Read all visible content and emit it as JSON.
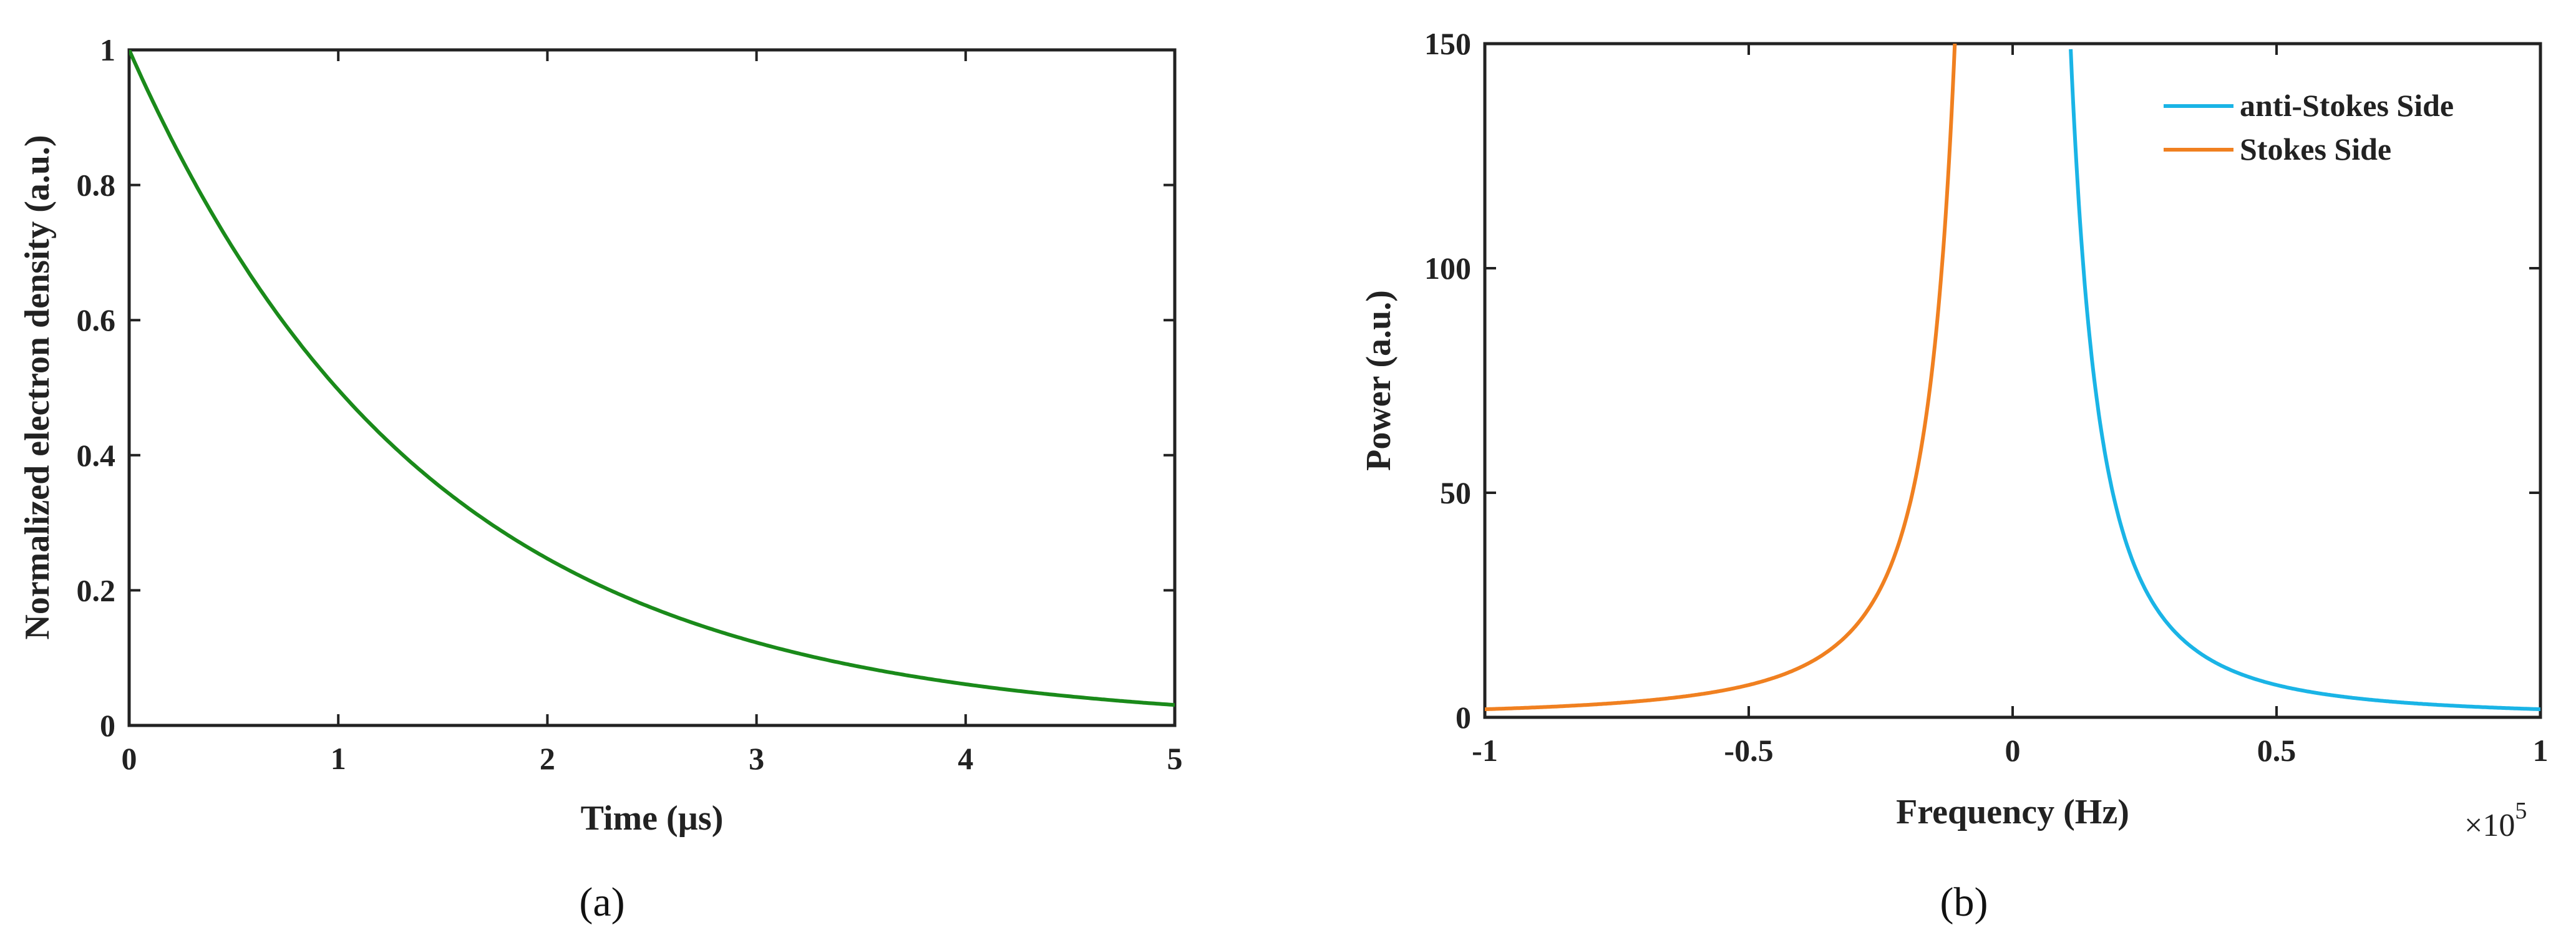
{
  "chart_data": [
    {
      "type": "line",
      "panel_label": "(a)",
      "xlabel": "Time (µs)",
      "ylabel": "Normalized electron density (a.u.)",
      "xlim": [
        0,
        5
      ],
      "ylim": [
        0,
        1
      ],
      "xticks": [
        0,
        1,
        2,
        3,
        4,
        5
      ],
      "yticks": [
        0,
        0.2,
        0.4,
        0.6,
        0.8,
        1
      ],
      "xtick_labels": [
        "0",
        "1",
        "2",
        "3",
        "4",
        "5"
      ],
      "ytick_labels": [
        "0",
        "0.2",
        "0.4",
        "0.6",
        "0.8",
        "1"
      ],
      "grid": false,
      "series": [
        {
          "color": "#1a8a1a",
          "x": [
            0,
            0.25,
            0.5,
            0.75,
            1,
            1.25,
            1.5,
            1.75,
            2,
            2.5,
            3,
            3.5,
            4,
            4.5,
            5
          ],
          "y": [
            1,
            0.84,
            0.71,
            0.59,
            0.5,
            0.42,
            0.35,
            0.3,
            0.25,
            0.18,
            0.125,
            0.088,
            0.062,
            0.044,
            0.031
          ]
        }
      ]
    },
    {
      "type": "line",
      "panel_label": "(b)",
      "xlabel": "Frequency (Hz)",
      "ylabel": "Power (a.u.)",
      "xlim": [
        -100000,
        100000
      ],
      "ylim": [
        0,
        150
      ],
      "xticks": [
        -100000,
        -50000,
        0,
        50000,
        100000
      ],
      "yticks": [
        0,
        50,
        100,
        150
      ],
      "xtick_labels": [
        "-1",
        "-0.5",
        "0",
        "0.5",
        "1"
      ],
      "ytick_labels": [
        "0",
        "50",
        "100",
        "150"
      ],
      "x_exponent_base": "×10",
      "x_exponent_power": "5",
      "grid": false,
      "legend_position": "top-right",
      "series": [
        {
          "name": "anti-Stokes Side",
          "color": "#1ab4e6",
          "x": [
            11000,
            12000,
            13000,
            15000,
            17000,
            20000,
            25000,
            30000,
            40000,
            50000,
            60000,
            70000,
            80000,
            90000,
            100000
          ],
          "y": [
            150,
            110,
            82,
            55,
            42,
            31,
            21,
            16,
            10,
            7.3,
            5.6,
            4.4,
            3.6,
            2.9,
            2.4
          ]
        },
        {
          "name": "Stokes Side",
          "color": "#f08020",
          "x": [
            -100000,
            -90000,
            -80000,
            -70000,
            -60000,
            -50000,
            -40000,
            -30000,
            -25000,
            -20000,
            -17000,
            -15000,
            -13000,
            -12000,
            -11000,
            -10000
          ],
          "y": [
            1,
            1.2,
            1.5,
            2,
            2.8,
            4.2,
            6.9,
            13,
            19.5,
            33,
            48,
            62,
            84,
            100,
            122,
            150
          ]
        }
      ]
    }
  ]
}
